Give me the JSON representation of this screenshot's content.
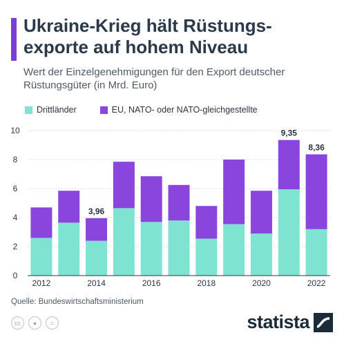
{
  "header": {
    "title_line1": "Ukraine-Krieg hält Rüstungs-",
    "title_line2": "exporte auf hohem Niveau",
    "subtitle_line1": "Wert der Einzelgenehmigungen für den Export deutscher",
    "subtitle_line2": "Rüstungsgüter (in Mrd. Euro)"
  },
  "legend": {
    "item1": "Drittländer",
    "item2": "EU, NATO- oder NATO-gleichgestellte"
  },
  "colors": {
    "accent": "#7c3fd6",
    "drittlaender": "#7fe3d2",
    "eu_nato": "#8a45dc",
    "grid": "#d6dbe0"
  },
  "chart_data": {
    "type": "bar",
    "stacked": true,
    "categories": [
      "2012",
      "2013",
      "2014",
      "2015",
      "2016",
      "2017",
      "2018",
      "2019",
      "2020",
      "2021",
      "2022"
    ],
    "series": [
      {
        "name": "Drittländer",
        "values": [
          2.6,
          3.65,
          2.4,
          4.65,
          3.7,
          3.8,
          2.55,
          3.55,
          2.9,
          5.95,
          3.2
        ]
      },
      {
        "name": "EU, NATO- oder NATO-gleichgestellte",
        "values": [
          2.1,
          2.2,
          1.56,
          3.2,
          3.15,
          2.45,
          2.25,
          4.45,
          2.95,
          3.4,
          5.16
        ]
      }
    ],
    "totals_labels": {
      "2014": "3,96",
      "2021": "9,35",
      "2022": "8,36"
    },
    "yticks": [
      0,
      2,
      4,
      6,
      8,
      10
    ],
    "xtick_labels": [
      "2012",
      "2014",
      "2016",
      "2018",
      "2020",
      "2022"
    ],
    "ylim": [
      0,
      10
    ],
    "grid": true
  },
  "footer": {
    "source": "Quelle: Bundeswirtschaftsministerium",
    "brand": "statista",
    "license_icons": [
      "creative-commons-icon",
      "attribution-icon",
      "no-derivatives-icon"
    ]
  }
}
